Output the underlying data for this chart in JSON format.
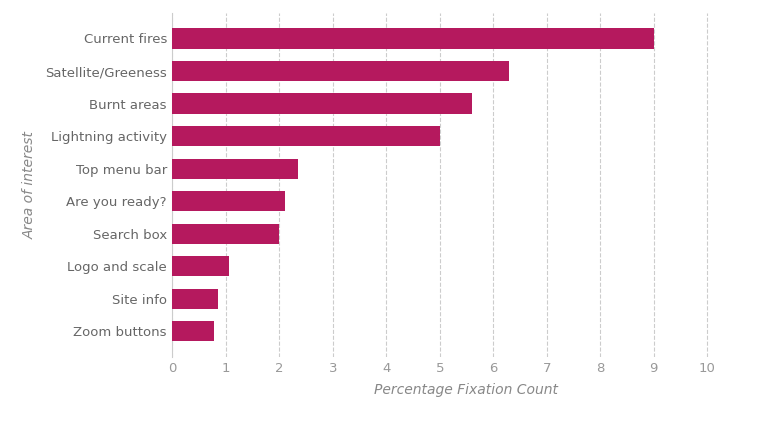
{
  "categories": [
    "Zoom buttons",
    "Site info",
    "Logo and scale",
    "Search box",
    "Are you ready?",
    "Top menu bar",
    "Lightning activity",
    "Burnt areas",
    "Satellite/Greeness",
    "Current fires"
  ],
  "values": [
    0.78,
    0.85,
    1.05,
    2.0,
    2.1,
    2.35,
    5.0,
    5.6,
    6.3,
    9.0
  ],
  "bar_color": "#b5195e",
  "xlabel": "Percentage Fixation Count",
  "ylabel": "Area of interest",
  "xlim": [
    0,
    11
  ],
  "xticks": [
    0,
    1,
    2,
    3,
    4,
    5,
    6,
    7,
    8,
    9,
    10
  ],
  "background_color": "#ffffff",
  "grid_color": "#cccccc",
  "bar_height": 0.62,
  "tick_fontsize": 9.5,
  "axis_label_fontsize": 10
}
